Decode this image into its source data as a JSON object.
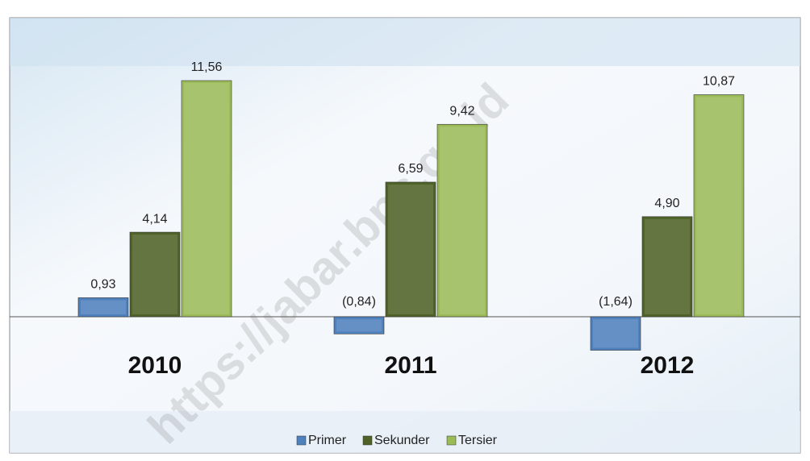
{
  "chart_data": {
    "type": "bar",
    "categories": [
      "2010",
      "2011",
      "2012"
    ],
    "series": [
      {
        "name": "Primer",
        "color": "#4f81bd",
        "values": [
          0.93,
          -0.84,
          -1.64
        ],
        "value_labels": [
          "0,93",
          "(0,84)",
          "(1,64)"
        ]
      },
      {
        "name": "Sekunder",
        "color": "#4f6228",
        "values": [
          4.14,
          6.59,
          4.9
        ],
        "value_labels": [
          "4,14",
          "6,59",
          "4,90"
        ]
      },
      {
        "name": "Tersier",
        "color": "#9bbb59",
        "values": [
          11.56,
          9.42,
          10.87
        ],
        "value_labels": [
          "11,56",
          "9,42",
          "10,87"
        ]
      }
    ],
    "watermark": "https://jabar.bps.go.id"
  }
}
